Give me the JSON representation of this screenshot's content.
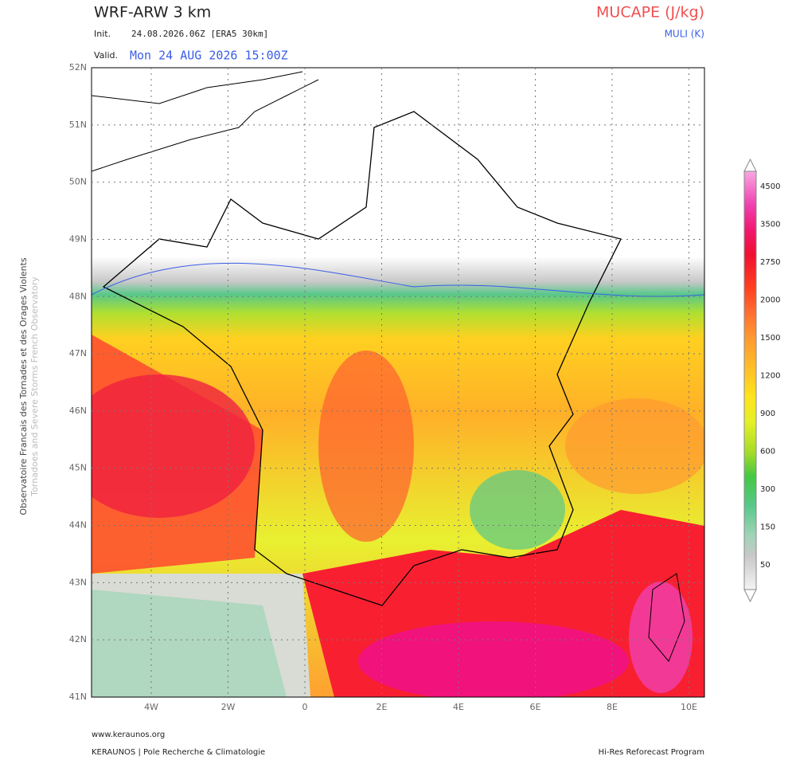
{
  "header": {
    "model": "WRF-ARW 3 km",
    "init_label": "Init.",
    "init": "24.08.2026.06Z [ERA5 30km]",
    "valid_label": "Valid.",
    "valid": "Mon 24 AUG 2026 15:00Z",
    "field": "MUCAPE (J/kg)",
    "contour": "MULI (K)"
  },
  "side_text": [
    "Observatoire Francais des Tornades et des Orages Violents",
    "Tornadoes and Severe Storms French Observatory"
  ],
  "map": {
    "lat_labels": [
      "52N",
      "51N",
      "50N",
      "49N",
      "48N",
      "47N",
      "46N",
      "45N",
      "44N",
      "43N",
      "42N",
      "41N"
    ],
    "lon_labels": [
      "4W",
      "2W",
      "0",
      "2E",
      "4E",
      "6E",
      "8E",
      "10E"
    ]
  },
  "colorbar": {
    "labels": [
      4500,
      3500,
      2750,
      2000,
      1500,
      1200,
      900,
      600,
      300,
      150,
      50
    ]
  },
  "footer": {
    "url": "www.keraunos.org",
    "left": "KERAUNOS | Pole Recherche & Climatologie",
    "right": "Hi-Res Reforecast Program"
  }
}
